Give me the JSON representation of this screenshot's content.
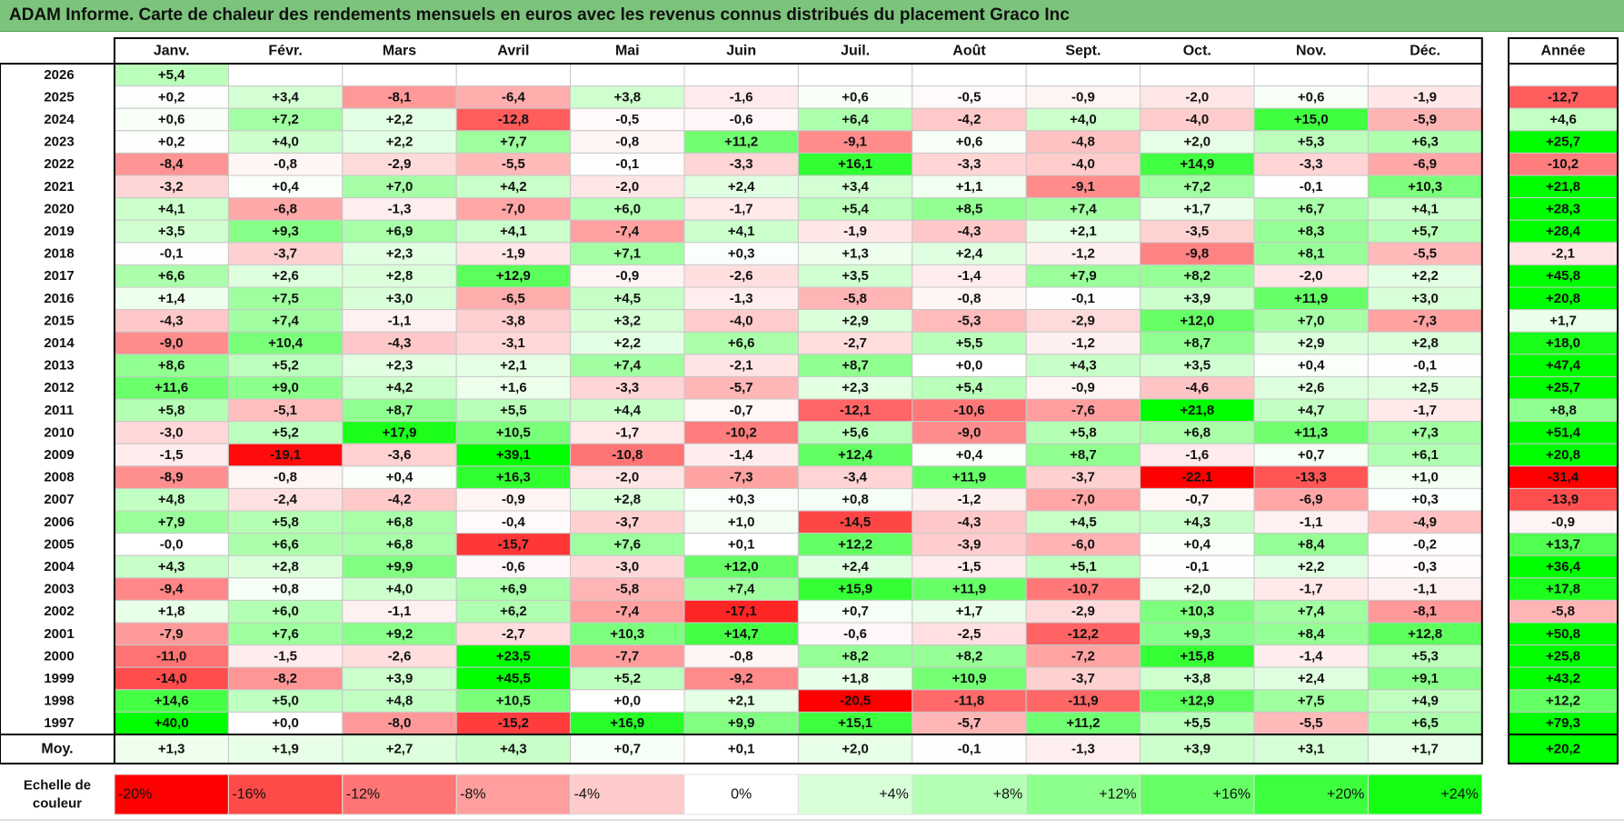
{
  "title": "ADAM Informe. Carte de chaleur des rendements mensuels en euros avec les revenus connus distribués du placement Graco Inc",
  "chart_data": {
    "type": "heatmap",
    "months": [
      "Janv.",
      "Févr.",
      "Mars",
      "Avril",
      "Mai",
      "Juin",
      "Juil.",
      "Août",
      "Sept.",
      "Oct.",
      "Nov.",
      "Déc."
    ],
    "year_label": "Année",
    "rows": [
      {
        "year": "2026",
        "values": [
          "+5,4",
          "",
          "",
          "",
          "",
          "",
          "",
          "",
          "",
          "",
          "",
          ""
        ],
        "annual": ""
      },
      {
        "year": "2025",
        "values": [
          "+0,2",
          "+3,4",
          "-8,1",
          "-6,4",
          "+3,8",
          "-1,6",
          "+0,6",
          "-0,5",
          "-0,9",
          "-2,0",
          "+0,6",
          "-1,9"
        ],
        "annual": "-12,7"
      },
      {
        "year": "2024",
        "values": [
          "+0,6",
          "+7,2",
          "+2,2",
          "-12,8",
          "-0,5",
          "-0,6",
          "+6,4",
          "-4,2",
          "+4,0",
          "-4,0",
          "+15,0",
          "-5,9"
        ],
        "annual": "+4,6"
      },
      {
        "year": "2023",
        "values": [
          "+0,2",
          "+4,0",
          "+2,2",
          "+7,7",
          "-0,8",
          "+11,2",
          "-9,1",
          "+0,6",
          "-4,8",
          "+2,0",
          "+5,3",
          "+6,3"
        ],
        "annual": "+25,7"
      },
      {
        "year": "2022",
        "values": [
          "-8,4",
          "-0,8",
          "-2,9",
          "-5,5",
          "-0,1",
          "-3,3",
          "+16,1",
          "-3,3",
          "-4,0",
          "+14,9",
          "-3,3",
          "-6,9"
        ],
        "annual": "-10,2"
      },
      {
        "year": "2021",
        "values": [
          "-3,2",
          "+0,4",
          "+7,0",
          "+4,2",
          "-2,0",
          "+2,4",
          "+3,4",
          "+1,1",
          "-9,1",
          "+7,2",
          "-0,1",
          "+10,3"
        ],
        "annual": "+21,8"
      },
      {
        "year": "2020",
        "values": [
          "+4,1",
          "-6,8",
          "-1,3",
          "-7,0",
          "+6,0",
          "-1,7",
          "+5,4",
          "+8,5",
          "+7,4",
          "+1,7",
          "+6,7",
          "+4,1"
        ],
        "annual": "+28,3"
      },
      {
        "year": "2019",
        "values": [
          "+3,5",
          "+9,3",
          "+6,9",
          "+4,1",
          "-7,4",
          "+4,1",
          "-1,9",
          "-4,3",
          "+2,1",
          "-3,5",
          "+8,3",
          "+5,7"
        ],
        "annual": "+28,4"
      },
      {
        "year": "2018",
        "values": [
          "-0,1",
          "-3,7",
          "+2,3",
          "-1,9",
          "+7,1",
          "+0,3",
          "+1,3",
          "+2,4",
          "-1,2",
          "-9,8",
          "+8,1",
          "-5,5"
        ],
        "annual": "-2,1"
      },
      {
        "year": "2017",
        "values": [
          "+6,6",
          "+2,6",
          "+2,8",
          "+12,9",
          "-0,9",
          "-2,6",
          "+3,5",
          "-1,4",
          "+7,9",
          "+8,2",
          "-2,0",
          "+2,2"
        ],
        "annual": "+45,8"
      },
      {
        "year": "2016",
        "values": [
          "+1,4",
          "+7,5",
          "+3,0",
          "-6,5",
          "+4,5",
          "-1,3",
          "-5,8",
          "-0,8",
          "-0,1",
          "+3,9",
          "+11,9",
          "+3,0"
        ],
        "annual": "+20,8"
      },
      {
        "year": "2015",
        "values": [
          "-4,3",
          "+7,4",
          "-1,1",
          "-3,8",
          "+3,2",
          "-4,0",
          "+2,9",
          "-5,3",
          "-2,9",
          "+12,0",
          "+7,0",
          "-7,3"
        ],
        "annual": "+1,7"
      },
      {
        "year": "2014",
        "values": [
          "-9,0",
          "+10,4",
          "-4,3",
          "-3,1",
          "+2,2",
          "+6,6",
          "-2,7",
          "+5,5",
          "-1,2",
          "+8,7",
          "+2,9",
          "+2,8"
        ],
        "annual": "+18,0"
      },
      {
        "year": "2013",
        "values": [
          "+8,6",
          "+5,2",
          "+2,3",
          "+2,1",
          "+7,4",
          "-2,1",
          "+8,7",
          "+0,0",
          "+4,3",
          "+3,5",
          "+0,4",
          "-0,1"
        ],
        "annual": "+47,4"
      },
      {
        "year": "2012",
        "values": [
          "+11,6",
          "+9,0",
          "+4,2",
          "+1,6",
          "-3,3",
          "-5,7",
          "+2,3",
          "+5,4",
          "-0,9",
          "-4,6",
          "+2,6",
          "+2,5"
        ],
        "annual": "+25,7"
      },
      {
        "year": "2011",
        "values": [
          "+5,8",
          "-5,1",
          "+8,7",
          "+5,5",
          "+4,4",
          "-0,7",
          "-12,1",
          "-10,6",
          "-7,6",
          "+21,8",
          "+4,7",
          "-1,7"
        ],
        "annual": "+8,8"
      },
      {
        "year": "2010",
        "values": [
          "-3,0",
          "+5,2",
          "+17,9",
          "+10,5",
          "-1,7",
          "-10,2",
          "+5,6",
          "-9,0",
          "+5,8",
          "+6,8",
          "+11,3",
          "+7,3"
        ],
        "annual": "+51,4"
      },
      {
        "year": "2009",
        "values": [
          "-1,5",
          "-19,1",
          "-3,6",
          "+39,1",
          "-10,8",
          "-1,4",
          "+12,4",
          "+0,4",
          "+8,7",
          "-1,6",
          "+0,7",
          "+6,1"
        ],
        "annual": "+20,8"
      },
      {
        "year": "2008",
        "values": [
          "-8,9",
          "-0,8",
          "+0,4",
          "+16,3",
          "-2,0",
          "-7,3",
          "-3,4",
          "+11,9",
          "-3,7",
          "-22,1",
          "-13,3",
          "+1,0"
        ],
        "annual": "-31,4"
      },
      {
        "year": "2007",
        "values": [
          "+4,8",
          "-2,4",
          "-4,2",
          "-0,9",
          "+2,8",
          "+0,3",
          "+0,8",
          "-1,2",
          "-7,0",
          "-0,7",
          "-6,9",
          "+0,3"
        ],
        "annual": "-13,9"
      },
      {
        "year": "2006",
        "values": [
          "+7,9",
          "+5,8",
          "+6,8",
          "-0,4",
          "-3,7",
          "+1,0",
          "-14,5",
          "-4,3",
          "+4,5",
          "+4,3",
          "-1,1",
          "-4,9"
        ],
        "annual": "-0,9"
      },
      {
        "year": "2005",
        "values": [
          "-0,0",
          "+6,6",
          "+6,8",
          "-15,7",
          "+7,6",
          "+0,1",
          "+12,2",
          "-3,9",
          "-6,0",
          "+0,4",
          "+8,4",
          "-0,2"
        ],
        "annual": "+13,7"
      },
      {
        "year": "2004",
        "values": [
          "+4,3",
          "+2,8",
          "+9,9",
          "-0,6",
          "-3,0",
          "+12,0",
          "+2,4",
          "-1,5",
          "+5,1",
          "-0,1",
          "+2,2",
          "-0,3"
        ],
        "annual": "+36,4"
      },
      {
        "year": "2003",
        "values": [
          "-9,4",
          "+0,8",
          "+4,0",
          "+6,9",
          "-5,8",
          "+7,4",
          "+15,9",
          "+11,9",
          "-10,7",
          "+2,0",
          "-1,7",
          "-1,1"
        ],
        "annual": "+17,8"
      },
      {
        "year": "2002",
        "values": [
          "+1,8",
          "+6,0",
          "-1,1",
          "+6,2",
          "-7,4",
          "-17,1",
          "+0,7",
          "+1,7",
          "-2,9",
          "+10,3",
          "+7,4",
          "-8,1"
        ],
        "annual": "-5,8"
      },
      {
        "year": "2001",
        "values": [
          "-7,9",
          "+7,6",
          "+9,2",
          "-2,7",
          "+10,3",
          "+14,7",
          "-0,6",
          "-2,5",
          "-12,2",
          "+9,3",
          "+8,4",
          "+12,8"
        ],
        "annual": "+50,8"
      },
      {
        "year": "2000",
        "values": [
          "-11,0",
          "-1,5",
          "-2,6",
          "+23,5",
          "-7,7",
          "-0,8",
          "+8,2",
          "+8,2",
          "-7,2",
          "+15,8",
          "-1,4",
          "+5,3"
        ],
        "annual": "+25,8"
      },
      {
        "year": "1999",
        "values": [
          "-14,0",
          "-8,2",
          "+3,9",
          "+45,5",
          "+5,2",
          "-9,2",
          "+1,8",
          "+10,9",
          "-3,7",
          "+3,8",
          "+2,4",
          "+9,1"
        ],
        "annual": "+43,2"
      },
      {
        "year": "1998",
        "values": [
          "+14,6",
          "+5,0",
          "+4,8",
          "+10,5",
          "+0,0",
          "+2,1",
          "-20,5",
          "-11,8",
          "-11,9",
          "+12,9",
          "+7,5",
          "+4,9"
        ],
        "annual": "+12,2"
      },
      {
        "year": "1997",
        "values": [
          "+40,0",
          "+0,0",
          "-8,0",
          "-15,2",
          "+16,9",
          "+9,9",
          "+15,1",
          "-5,7",
          "+11,2",
          "+5,5",
          "-5,5",
          "+6,5"
        ],
        "annual": "+79,3"
      }
    ],
    "average": {
      "label": "Moy.",
      "values": [
        "+1,3",
        "+1,9",
        "+2,7",
        "+4,3",
        "+0,7",
        "+0,1",
        "+2,0",
        "-0,1",
        "-1,3",
        "+3,9",
        "+3,1",
        "+1,7"
      ],
      "annual": "+20,2"
    },
    "legend": {
      "label_line1": "Echelle de",
      "label_line2": "couleur",
      "items": [
        "-20%",
        "-16%",
        "-12%",
        "-8%",
        "-4%",
        "0%",
        "+4%",
        "+8%",
        "+12%",
        "+16%",
        "+20%",
        "+24%"
      ],
      "colors": [
        "#ff0000",
        "#ff4a4a",
        "#ff7575",
        "#ff9e9e",
        "#ffcaca",
        "#ffffff",
        "#d9ffd9",
        "#b3ffb3",
        "#8cff8c",
        "#66ff66",
        "#3dff3d",
        "#14ff14"
      ]
    }
  }
}
